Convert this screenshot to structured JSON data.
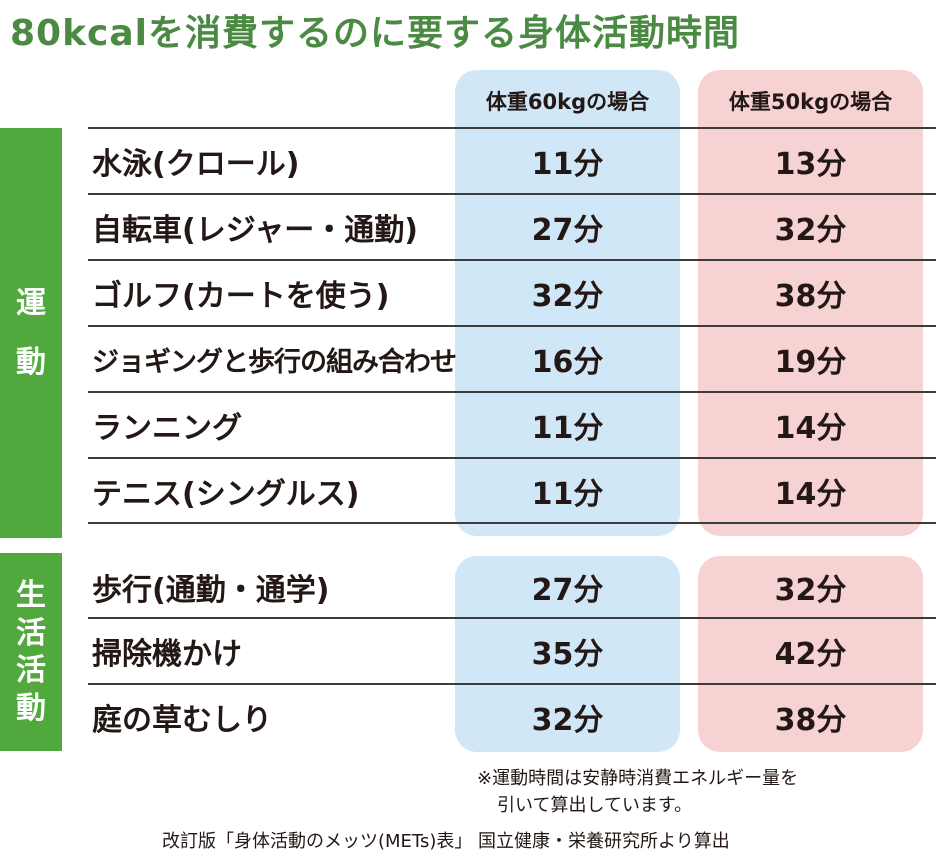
{
  "title": "80kcalを消費するのに要する身体活動時間",
  "columns": [
    "体重60kgの場合",
    "体重50kgの場合"
  ],
  "sections": [
    {
      "label": [
        "運",
        "動"
      ],
      "rows": [
        {
          "activity": "水泳(クロール)",
          "w60": "11分",
          "w50": "13分"
        },
        {
          "activity": "自転車(レジャー・通勤)",
          "w60": "27分",
          "w50": "32分"
        },
        {
          "activity": "ゴルフ(カートを使う)",
          "w60": "32分",
          "w50": "38分"
        },
        {
          "activity": "ジョギングと歩行の組み合わせ",
          "w60": "16分",
          "w50": "19分"
        },
        {
          "activity": "ランニング",
          "w60": "11分",
          "w50": "14分"
        },
        {
          "activity": "テニス(シングルス)",
          "w60": "11分",
          "w50": "14分"
        }
      ]
    },
    {
      "label": [
        "生",
        "活",
        "活",
        "動"
      ],
      "rows": [
        {
          "activity": "歩行(通勤・通学)",
          "w60": "27分",
          "w50": "32分"
        },
        {
          "activity": "掃除機かけ",
          "w60": "35分",
          "w50": "42分"
        },
        {
          "activity": "庭の草むしり",
          "w60": "32分",
          "w50": "38分"
        }
      ]
    }
  ],
  "note": [
    "※運動時間は安静時消費エネルギー量を",
    "引いて算出しています。"
  ],
  "source": "改訂版「身体活動のメッツ(METs)表」 国立健康・栄養研究所より算出",
  "colors": {
    "title": "#4a8a43",
    "side": "#51a83c",
    "col60": "#cfe7f7",
    "col50": "#f6d2d3"
  }
}
